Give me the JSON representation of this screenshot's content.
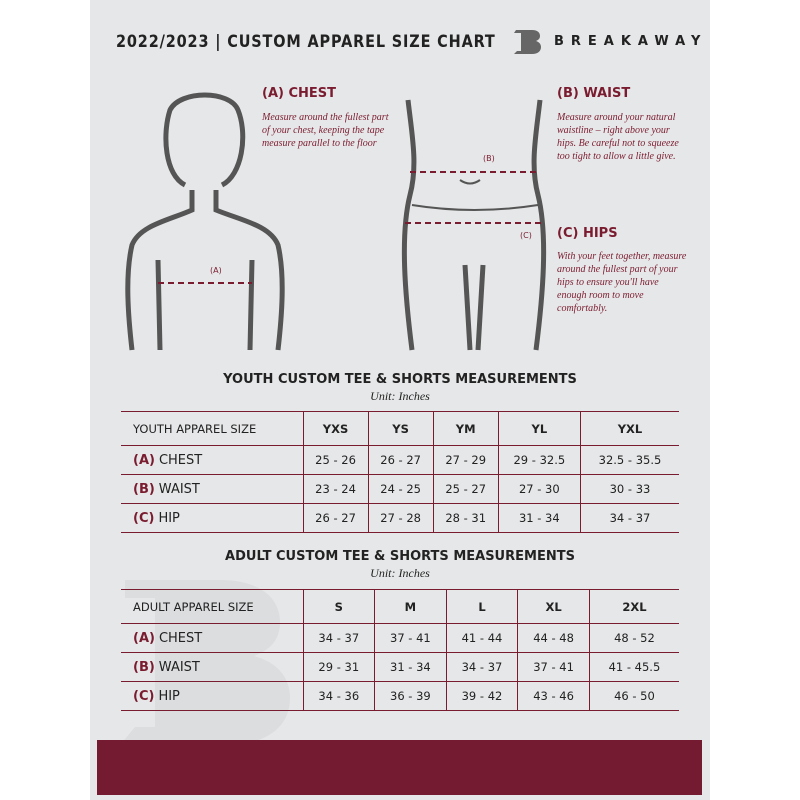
{
  "header": {
    "title": "2022/2023  |  CUSTOM APPAREL SIZE CHART",
    "brand": "BREAKAWAY"
  },
  "colors": {
    "accent": "#7a1c30",
    "background": "#e6e7e8"
  },
  "chest": {
    "title": "(A) CHEST",
    "desc": "Measure around the fullest part of your chest, keeping the tape measure parallel to the floor",
    "marker": "(A)"
  },
  "waist": {
    "title": "(B) WAIST",
    "desc": "Measure around your natural waistline – right above your hips. Be careful not to squeeze too tight to allow a little give.",
    "marker": "(B)"
  },
  "hips": {
    "title": "(C) HIPS",
    "desc": "With your feet together, measure around the fullest part of your hips to ensure you'll have enough room to move comfortably.",
    "marker": "(C)"
  },
  "youth": {
    "title": "YOUTH CUSTOM TEE & SHORTS MEASUREMENTS",
    "unit": "Unit: Inches",
    "header": [
      "YOUTH APPAREL SIZE",
      "YXS",
      "YS",
      "YM",
      "YL",
      "YXL"
    ],
    "rows": [
      {
        "letter": "(A)",
        "name": "CHEST",
        "values": [
          "25 - 26",
          "26 - 27",
          "27 - 29",
          "29 - 32.5",
          "32.5 - 35.5"
        ]
      },
      {
        "letter": "(B)",
        "name": "WAIST",
        "values": [
          "23 - 24",
          "24 - 25",
          "25 - 27",
          "27 - 30",
          "30 - 33"
        ]
      },
      {
        "letter": "(C)",
        "name": "HIP",
        "values": [
          "26 - 27",
          "27 - 28",
          "28 - 31",
          "31 - 34",
          "34 - 37"
        ]
      }
    ]
  },
  "adult": {
    "title": "ADULT CUSTOM TEE & SHORTS MEASUREMENTS",
    "unit": "Unit: Inches",
    "header": [
      "ADULT APPAREL SIZE",
      "S",
      "M",
      "L",
      "XL",
      "2XL"
    ],
    "rows": [
      {
        "letter": "(A)",
        "name": "CHEST",
        "values": [
          "34 - 37",
          "37 - 41",
          "41 - 44",
          "44 - 48",
          "48 - 52"
        ]
      },
      {
        "letter": "(B)",
        "name": "WAIST",
        "values": [
          "29 - 31",
          "31 - 34",
          "34 - 37",
          "37 - 41",
          "41 - 45.5"
        ]
      },
      {
        "letter": "(C)",
        "name": "HIP",
        "values": [
          "34 - 36",
          "36 - 39",
          "39 - 42",
          "43 - 46",
          "46 - 50"
        ]
      }
    ]
  }
}
